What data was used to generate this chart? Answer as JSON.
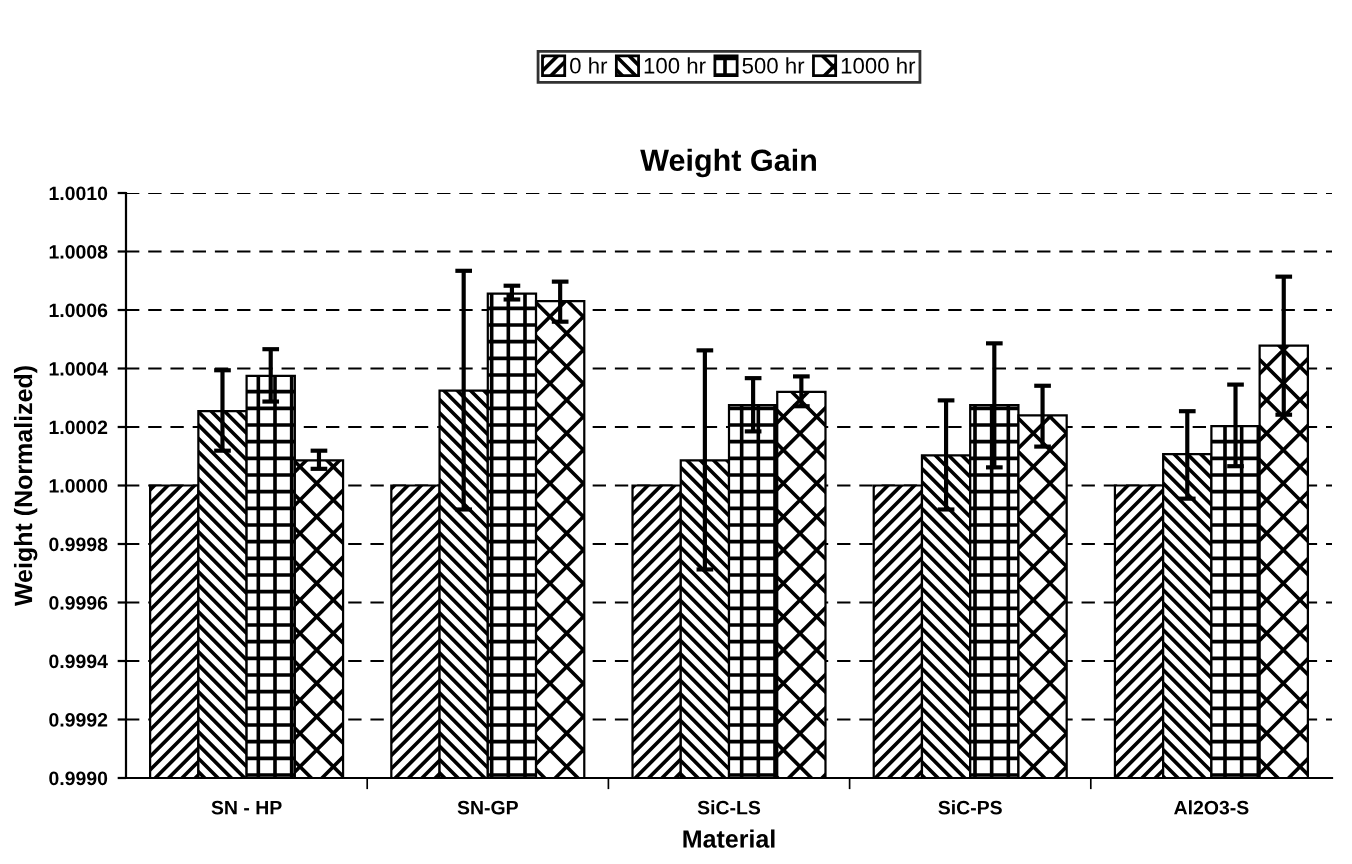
{
  "chart_data": {
    "type": "bar",
    "title": "Weight Gain",
    "xlabel": "Material",
    "ylabel": "Weight (Normalized)",
    "categories": [
      "SN - HP",
      "SN-GP",
      "SiC-LS",
      "SiC-PS",
      "Al2O3-S"
    ],
    "series": [
      {
        "name": "0 hr",
        "color": "#000000",
        "values": [
          1.0,
          1.0,
          1.0,
          1.0,
          1.0
        ]
      },
      {
        "name": "100 hr",
        "color": "#000000",
        "values": [
          1.000254,
          1.000324,
          1.000086,
          1.000103,
          1.000107
        ],
        "errors": [
          [
            1.000119,
            1.000394
          ],
          [
            0.999918,
            1.000734
          ],
          [
            0.999713,
            1.000462
          ],
          [
            0.999918,
            1.000291
          ],
          [
            0.999955,
            1.000254
          ]
        ]
      },
      {
        "name": "500 hr",
        "color": "#000000",
        "values": [
          1.000375,
          1.000656,
          1.000275,
          1.000275,
          1.000203
        ],
        "errors": [
          [
            1.000287,
            1.000466
          ],
          [
            1.000636,
            1.000683
          ],
          [
            1.000185,
            1.000367
          ],
          [
            1.000062,
            1.000486
          ],
          [
            1.000066,
            1.000345
          ]
        ]
      },
      {
        "name": "1000 hr",
        "color": "#000000",
        "values": [
          1.000086,
          1.00063,
          1.00032,
          1.00024,
          1.000478
        ],
        "errors": [
          [
            1.000057,
            1.000119
          ],
          [
            1.00056,
            1.000697
          ],
          [
            1.000271,
            1.000373
          ],
          [
            1.000133,
            1.000341
          ],
          [
            1.000242,
            1.000714
          ]
        ]
      }
    ],
    "ylim": [
      0.999,
      1.001
    ],
    "yticks": [
      {
        "value": 0.999,
        "label": "0.9990"
      },
      {
        "value": 0.9992,
        "label": "0.9992"
      },
      {
        "value": 0.9994,
        "label": "0.9994"
      },
      {
        "value": 0.9996,
        "label": "0.9996"
      },
      {
        "value": 0.9998,
        "label": "0.9998"
      },
      {
        "value": 1.0,
        "label": "1.0000"
      },
      {
        "value": 1.0002,
        "label": "1.0002"
      },
      {
        "value": 1.0004,
        "label": "1.0004"
      },
      {
        "value": 1.0006,
        "label": "1.0006"
      },
      {
        "value": 1.0008,
        "label": "1.0008"
      },
      {
        "value": 1.001,
        "label": "1.0010"
      }
    ],
    "grid": "y",
    "line_style": "dashed",
    "legend": "top"
  }
}
